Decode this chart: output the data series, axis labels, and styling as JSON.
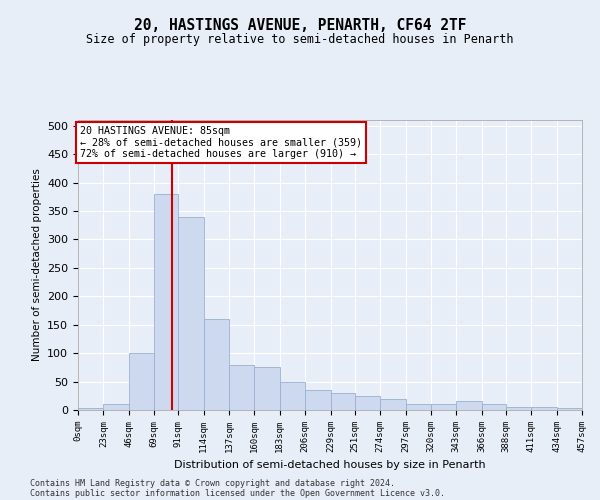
{
  "title": "20, HASTINGS AVENUE, PENARTH, CF64 2TF",
  "subtitle": "Size of property relative to semi-detached houses in Penarth",
  "xlabel": "Distribution of semi-detached houses by size in Penarth",
  "ylabel": "Number of semi-detached properties",
  "footnote1": "Contains HM Land Registry data © Crown copyright and database right 2024.",
  "footnote2": "Contains public sector information licensed under the Open Government Licence v3.0.",
  "annotation_title": "20 HASTINGS AVENUE: 85sqm",
  "annotation_line1": "← 28% of semi-detached houses are smaller (359)",
  "annotation_line2": "72% of semi-detached houses are larger (910) →",
  "property_size": 85,
  "bar_color": "#ccd9ef",
  "bar_edge_color": "#9ab0d0",
  "vline_color": "#cc0000",
  "annotation_box_color": "#ffffff",
  "annotation_box_edge": "#cc0000",
  "bin_edges": [
    0,
    23,
    46,
    69,
    91,
    114,
    137,
    160,
    183,
    206,
    229,
    251,
    274,
    297,
    320,
    343,
    366,
    388,
    411,
    434,
    457
  ],
  "bin_counts": [
    3,
    10,
    100,
    380,
    340,
    160,
    80,
    75,
    50,
    35,
    30,
    25,
    20,
    10,
    10,
    15,
    10,
    5,
    5,
    3
  ],
  "ylim": [
    0,
    510
  ],
  "yticks": [
    0,
    50,
    100,
    150,
    200,
    250,
    300,
    350,
    400,
    450,
    500
  ],
  "tick_labels": [
    "0sqm",
    "23sqm",
    "46sqm",
    "69sqm",
    "91sqm",
    "114sqm",
    "137sqm",
    "160sqm",
    "183sqm",
    "206sqm",
    "229sqm",
    "251sqm",
    "274sqm",
    "297sqm",
    "320sqm",
    "343sqm",
    "366sqm",
    "388sqm",
    "411sqm",
    "434sqm",
    "457sqm"
  ],
  "bg_color": "#e8eef8",
  "plot_bg_color": "#e8eef8",
  "grid_color": "#ffffff",
  "title_fontsize": 10.5,
  "subtitle_fontsize": 8.5
}
